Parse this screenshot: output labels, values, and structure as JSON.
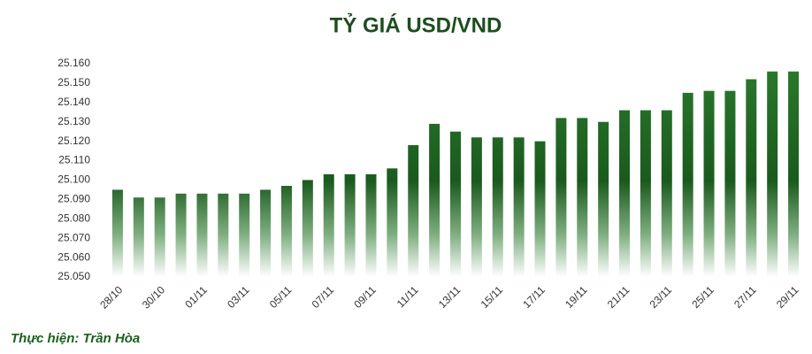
{
  "chart_data": {
    "type": "bar",
    "title": "TỶ GIÁ USD/VND",
    "credit": "Thực hiện: Trần Hòa",
    "categories": [
      "28/10",
      null,
      "30/10",
      null,
      "01/11",
      null,
      "03/11",
      null,
      "05/11",
      null,
      "07/11",
      null,
      "09/11",
      null,
      "11/11",
      null,
      "13/11",
      null,
      "15/11",
      null,
      "17/11",
      null,
      "19/11",
      null,
      "21/11",
      null,
      "23/11",
      null,
      "25/11",
      null,
      "27/11",
      null,
      "29/11"
    ],
    "values": [
      25095,
      25091,
      25091,
      25093,
      25093,
      25093,
      25093,
      25095,
      25097,
      25100,
      25103,
      25103,
      25103,
      25106,
      25118,
      25129,
      25125,
      25122,
      25122,
      25122,
      25120,
      25132,
      25132,
      25130,
      25136,
      25136,
      25136,
      25145,
      25146,
      25146,
      25152,
      25156,
      25156
    ],
    "color": "#1d6420",
    "ylim": [
      25050,
      25160
    ],
    "yticks": [
      {
        "value": 25050,
        "label": "25.050"
      },
      {
        "value": 25060,
        "label": "25.060"
      },
      {
        "value": 25070,
        "label": "25.070"
      },
      {
        "value": 25080,
        "label": "25.080"
      },
      {
        "value": 25090,
        "label": "25.090"
      },
      {
        "value": 25100,
        "label": "25.100"
      },
      {
        "value": 25110,
        "label": "25.110"
      },
      {
        "value": 25120,
        "label": "25.120"
      },
      {
        "value": 25130,
        "label": "25.130"
      },
      {
        "value": 25140,
        "label": "25.140"
      },
      {
        "value": 25150,
        "label": "25.150"
      },
      {
        "value": 25160,
        "label": "25.160"
      }
    ],
    "grid": false
  }
}
